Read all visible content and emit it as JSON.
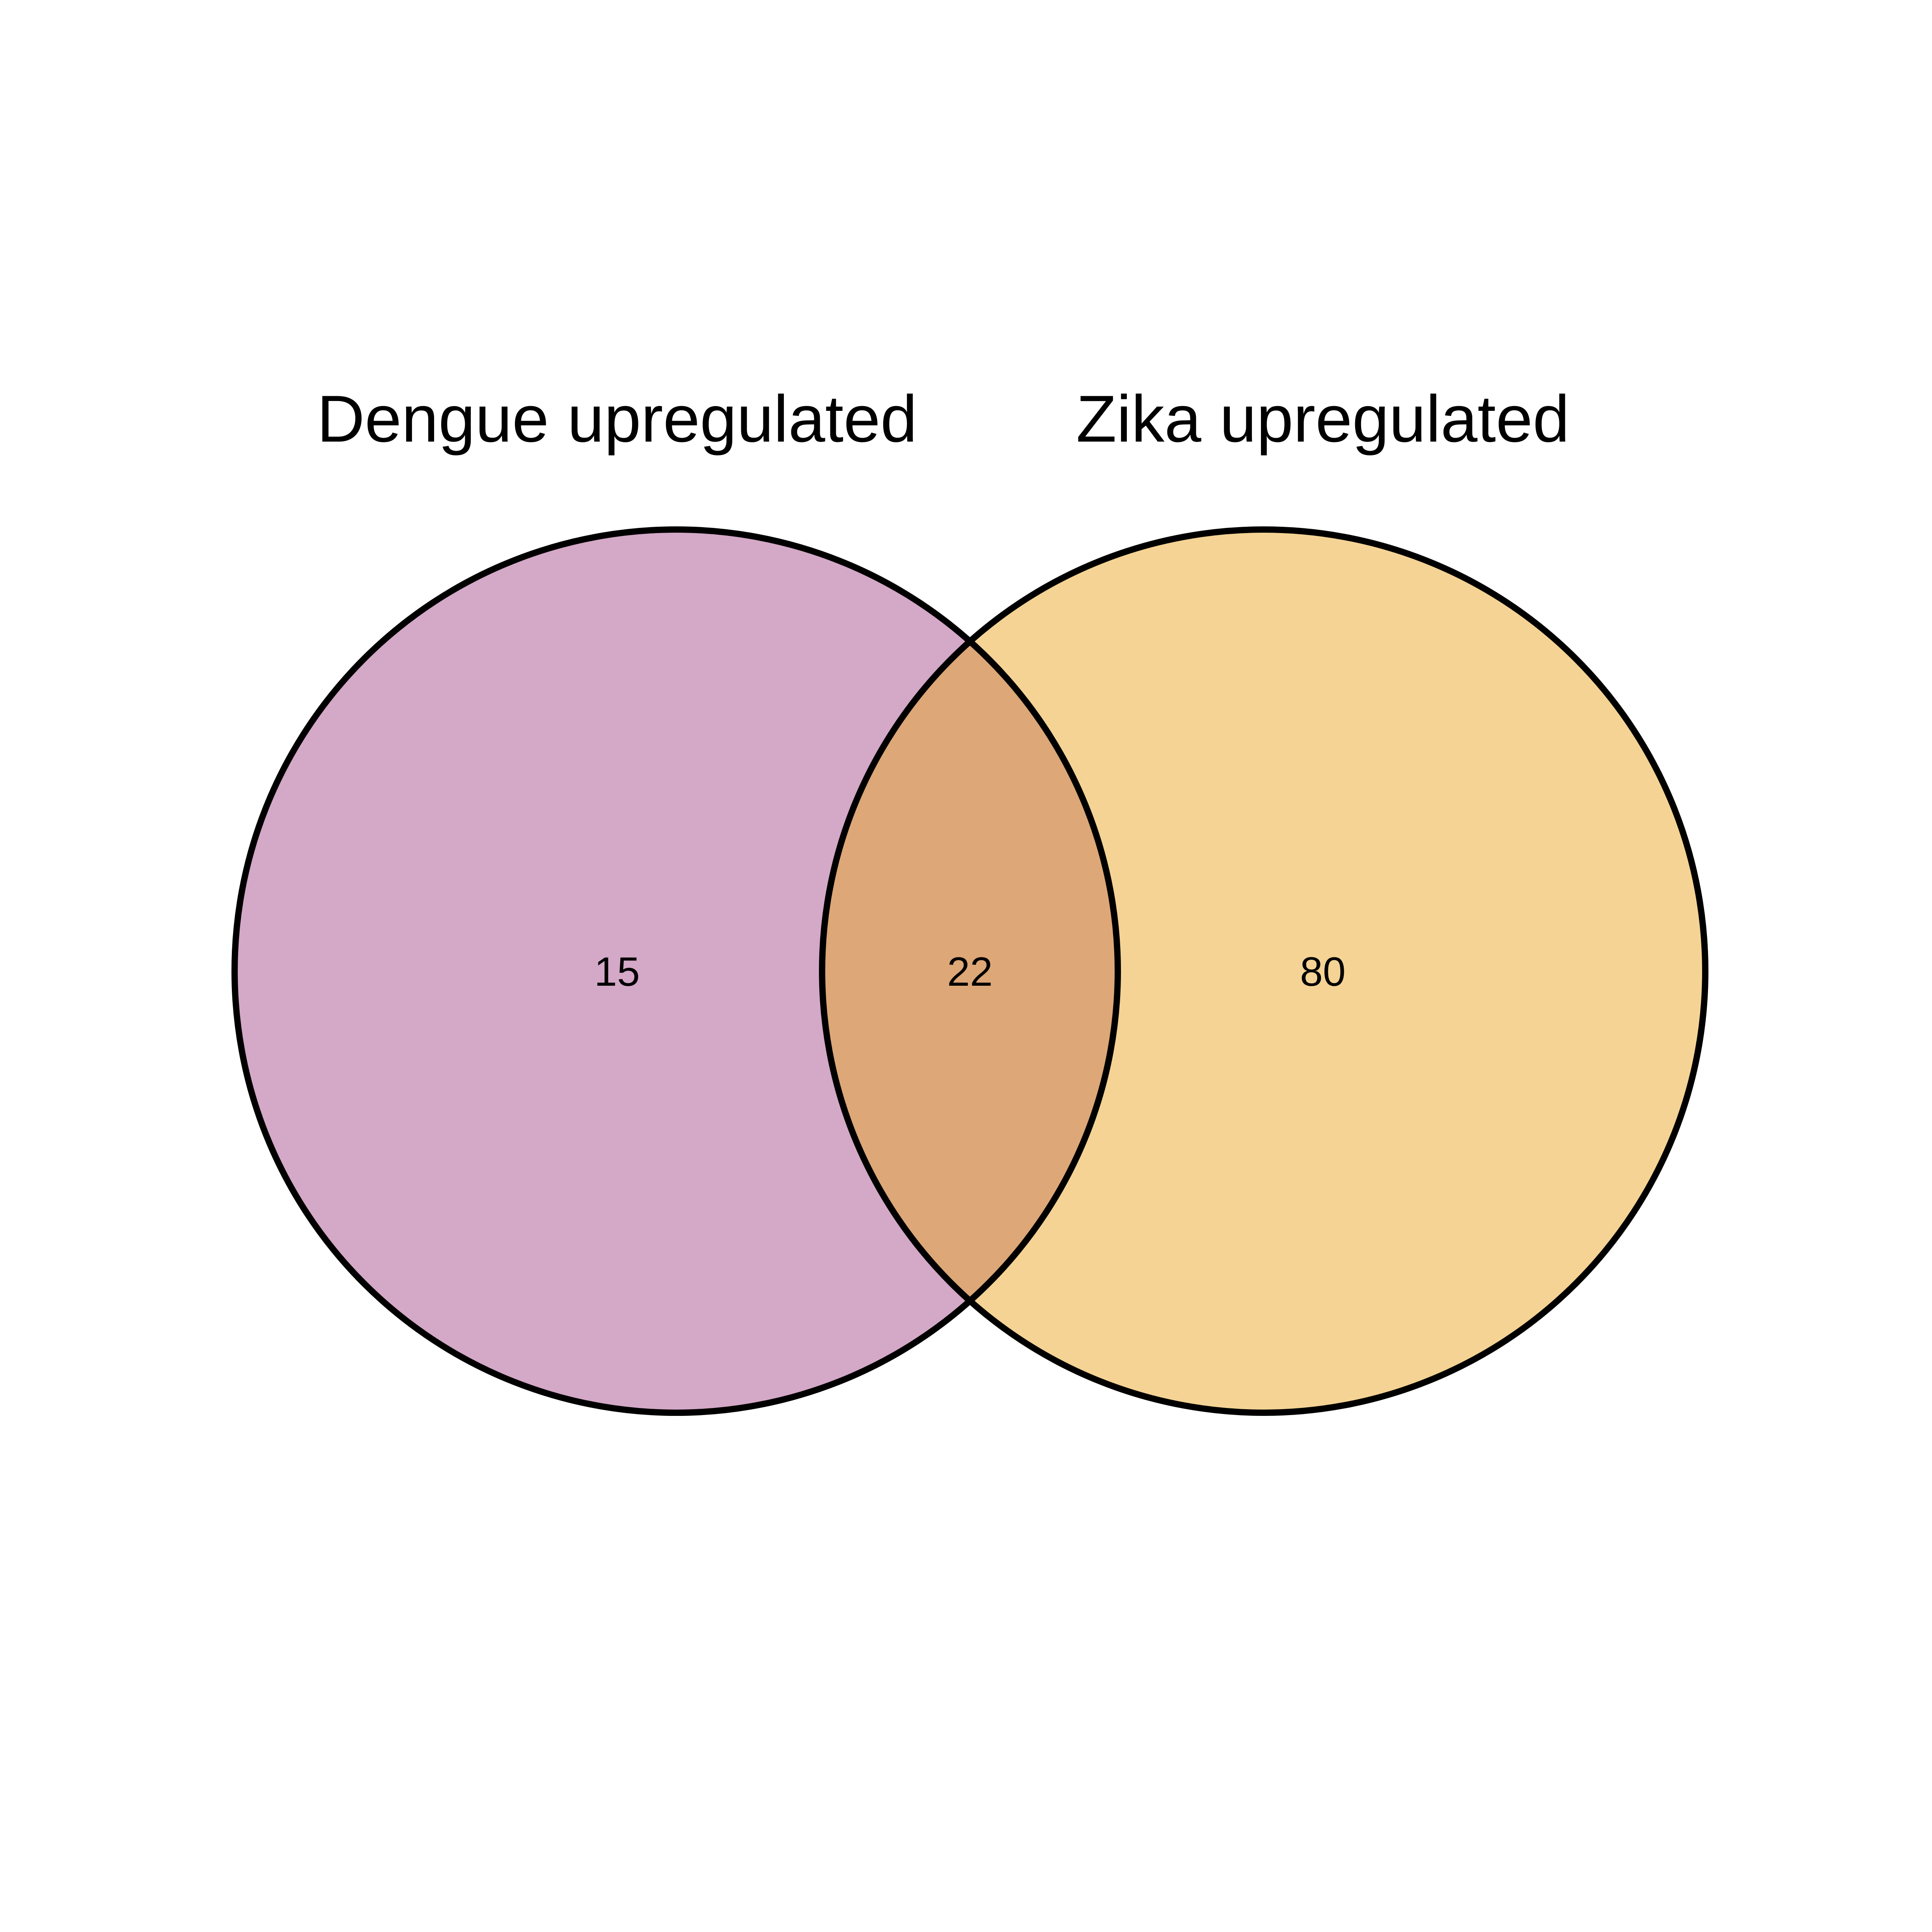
{
  "sets": [
    {
      "key": "dengue",
      "label": "Dengue upregulated",
      "color": "#d4a8c7"
    },
    {
      "key": "zika",
      "label": "Zika upregulated",
      "color": "#f4d394"
    }
  ],
  "regions": {
    "dengue_only": "15",
    "intersection": "22",
    "zika_only": "80"
  },
  "colors": {
    "dengue_fill": "#d4a8c7",
    "zika_fill": "#f4d394",
    "intersection_fill": "#dda777",
    "outline": "#000000"
  }
}
